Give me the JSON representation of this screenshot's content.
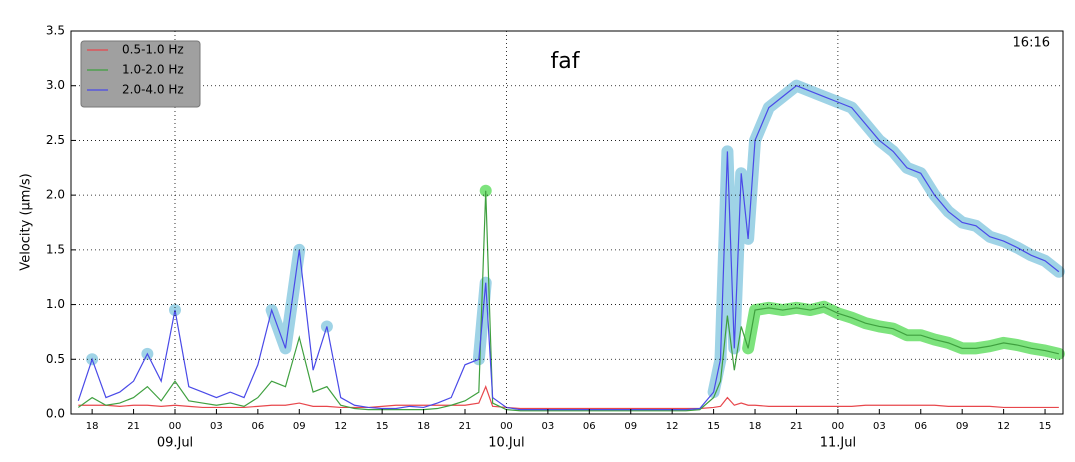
{
  "chart_data": {
    "type": "line",
    "title": "faf",
    "annotation": "16:16",
    "y_label": "Velocity (μm/s)",
    "x": [
      17,
      18,
      19,
      20,
      21,
      22,
      23,
      24,
      25,
      26,
      27,
      28,
      29,
      30,
      31,
      32,
      33,
      34,
      35,
      36,
      37,
      38,
      39,
      40,
      41,
      42,
      43,
      44,
      45,
      46,
      46.5,
      47,
      48,
      49,
      50,
      51,
      52,
      53,
      54,
      55,
      56,
      57,
      58,
      59,
      60,
      61,
      62,
      63,
      63.5,
      64,
      64.5,
      65,
      65.5,
      66,
      67,
      68,
      69,
      70,
      71,
      72,
      73,
      74,
      75,
      76,
      77,
      78,
      79,
      80,
      81,
      82,
      83,
      84,
      85,
      86,
      87,
      88
    ],
    "series": [
      {
        "name": "0.5-1.0 Hz",
        "color": "#e8474c",
        "values": [
          0.08,
          0.08,
          0.08,
          0.07,
          0.08,
          0.08,
          0.07,
          0.08,
          0.07,
          0.06,
          0.06,
          0.06,
          0.06,
          0.07,
          0.08,
          0.08,
          0.1,
          0.07,
          0.07,
          0.06,
          0.06,
          0.06,
          0.07,
          0.08,
          0.08,
          0.08,
          0.08,
          0.08,
          0.08,
          0.1,
          0.25,
          0.07,
          0.06,
          0.05,
          0.05,
          0.05,
          0.05,
          0.05,
          0.05,
          0.05,
          0.05,
          0.05,
          0.05,
          0.05,
          0.05,
          0.05,
          0.05,
          0.06,
          0.07,
          0.15,
          0.08,
          0.1,
          0.08,
          0.08,
          0.07,
          0.07,
          0.07,
          0.07,
          0.07,
          0.07,
          0.07,
          0.08,
          0.08,
          0.08,
          0.08,
          0.08,
          0.08,
          0.07,
          0.07,
          0.07,
          0.07,
          0.06,
          0.06,
          0.06,
          0.06,
          0.06
        ]
      },
      {
        "name": "1.0-2.0 Hz",
        "color": "#3fa03f",
        "highlight_color": "#7de37d",
        "highlight": [
          [
            46.3,
            46.8
          ],
          [
            65.5,
            88
          ]
        ],
        "values": [
          0.06,
          0.15,
          0.08,
          0.1,
          0.15,
          0.25,
          0.12,
          0.3,
          0.12,
          0.1,
          0.08,
          0.1,
          0.07,
          0.15,
          0.3,
          0.25,
          0.7,
          0.2,
          0.25,
          0.08,
          0.05,
          0.04,
          0.04,
          0.04,
          0.04,
          0.04,
          0.05,
          0.08,
          0.12,
          0.2,
          2.04,
          0.1,
          0.04,
          0.03,
          0.03,
          0.03,
          0.03,
          0.03,
          0.03,
          0.03,
          0.03,
          0.03,
          0.03,
          0.03,
          0.03,
          0.03,
          0.04,
          0.15,
          0.3,
          0.9,
          0.4,
          0.8,
          0.6,
          0.95,
          0.97,
          0.95,
          0.97,
          0.95,
          0.98,
          0.92,
          0.88,
          0.83,
          0.8,
          0.78,
          0.72,
          0.72,
          0.68,
          0.65,
          0.6,
          0.6,
          0.62,
          0.65,
          0.63,
          0.6,
          0.58,
          0.55
        ]
      },
      {
        "name": "2.0-4.0 Hz",
        "color": "#4a4ae8",
        "highlight_color": "#9fd3e6",
        "highlight": [
          [
            17.8,
            18.2
          ],
          [
            21.8,
            22.2
          ],
          [
            23.8,
            24.4
          ],
          [
            30.5,
            33.5
          ],
          [
            34.7,
            35.1
          ],
          [
            45.5,
            46.8
          ],
          [
            62.8,
            88
          ]
        ],
        "values": [
          0.12,
          0.5,
          0.15,
          0.2,
          0.3,
          0.55,
          0.3,
          0.95,
          0.25,
          0.2,
          0.15,
          0.2,
          0.15,
          0.45,
          0.95,
          0.6,
          1.5,
          0.4,
          0.8,
          0.15,
          0.08,
          0.06,
          0.05,
          0.05,
          0.07,
          0.06,
          0.1,
          0.15,
          0.45,
          0.5,
          1.2,
          0.15,
          0.06,
          0.04,
          0.04,
          0.04,
          0.04,
          0.04,
          0.04,
          0.04,
          0.04,
          0.04,
          0.04,
          0.04,
          0.04,
          0.04,
          0.05,
          0.2,
          0.5,
          2.4,
          0.6,
          2.2,
          1.6,
          2.5,
          2.8,
          2.9,
          3.0,
          2.95,
          2.9,
          2.85,
          2.8,
          2.65,
          2.5,
          2.4,
          2.25,
          2.2,
          2.0,
          1.85,
          1.75,
          1.72,
          1.62,
          1.58,
          1.52,
          1.45,
          1.4,
          1.3
        ]
      }
    ],
    "xlim": [
      16.47,
      88.3
    ],
    "xticks": [
      {
        "value": 18,
        "label": "18"
      },
      {
        "value": 21,
        "label": "21"
      },
      {
        "value": 24,
        "label": "00"
      },
      {
        "value": 27,
        "label": "03"
      },
      {
        "value": 30,
        "label": "06"
      },
      {
        "value": 33,
        "label": "09"
      },
      {
        "value": 36,
        "label": "12"
      },
      {
        "value": 39,
        "label": "15"
      },
      {
        "value": 42,
        "label": "18"
      },
      {
        "value": 45,
        "label": "21"
      },
      {
        "value": 48,
        "label": "00"
      },
      {
        "value": 51,
        "label": "03"
      },
      {
        "value": 54,
        "label": "06"
      },
      {
        "value": 57,
        "label": "09"
      },
      {
        "value": 60,
        "label": "12"
      },
      {
        "value": 63,
        "label": "15"
      },
      {
        "value": 66,
        "label": "18"
      },
      {
        "value": 69,
        "label": "21"
      },
      {
        "value": 72,
        "label": "00"
      },
      {
        "value": 75,
        "label": "03"
      },
      {
        "value": 78,
        "label": "06"
      },
      {
        "value": 81,
        "label": "09"
      },
      {
        "value": 84,
        "label": "12"
      },
      {
        "value": 87,
        "label": "15"
      }
    ],
    "date_ticks": [
      {
        "value": 24,
        "label": "09.Jul"
      },
      {
        "value": 48,
        "label": "10.Jul"
      },
      {
        "value": 72,
        "label": "11.Jul"
      }
    ],
    "ylim": [
      0,
      3.5
    ],
    "yticks": [
      {
        "value": 0,
        "label": "0.0"
      },
      {
        "value": 0.5,
        "label": "0.5"
      },
      {
        "value": 1,
        "label": "1.0"
      },
      {
        "value": 1.5,
        "label": "1.5"
      },
      {
        "value": 2,
        "label": "2.0"
      },
      {
        "value": 2.5,
        "label": "2.5"
      },
      {
        "value": 3,
        "label": "3.0"
      },
      {
        "value": 3.5,
        "label": "3.5"
      }
    ],
    "grid": true,
    "legend": "upper-left"
  }
}
